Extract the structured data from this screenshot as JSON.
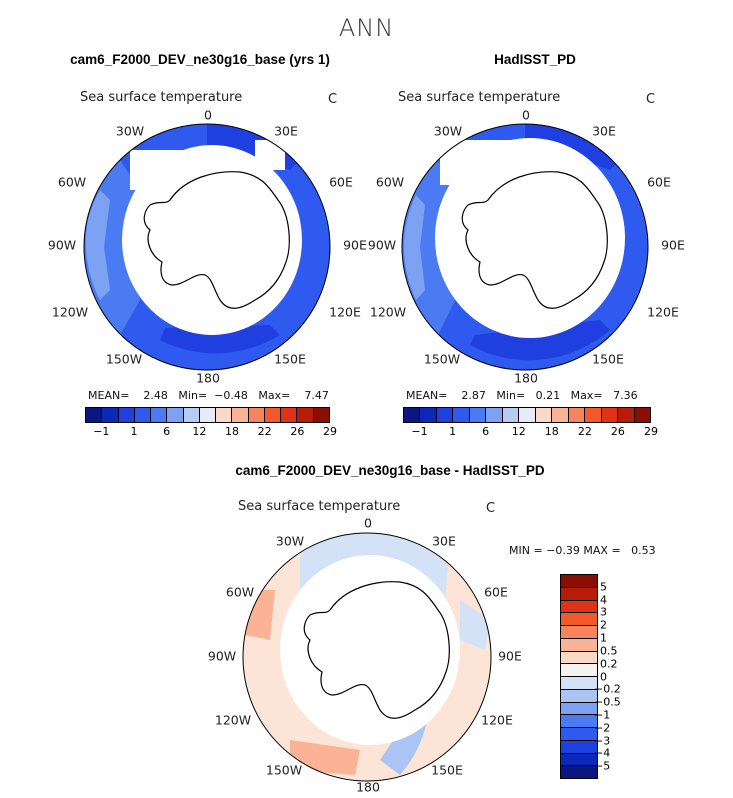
{
  "title": "ANN",
  "panels": [
    {
      "title": "cam6_F2000_DEV_ne30g16_base (yrs 1)",
      "var_label": "Sea surface temperature",
      "units": "C",
      "stats": {
        "mean_label": "MEAN=",
        "mean": "2.48",
        "min_label": "Min=",
        "min": "−0.48",
        "max_label": "Max=",
        "max": "7.47"
      }
    },
    {
      "title": "HadISST_PD",
      "var_label": "Sea surface temperature",
      "units": "C",
      "stats": {
        "mean_label": "MEAN=",
        "mean": "2.87",
        "min_label": "Min=",
        "min": "0.21",
        "max_label": "Max=",
        "max": "7.36"
      }
    },
    {
      "title": "cam6_F2000_DEV_ne30g16_base - HadISST_PD",
      "var_label": "Sea surface temperature",
      "units": "C",
      "stats": {
        "min_label": "MIN =",
        "min": "−0.39",
        "max_label": "MAX =",
        "max": "0.53"
      }
    }
  ],
  "lon_labels": [
    "0",
    "30E",
    "60E",
    "90E",
    "120E",
    "150E",
    "180",
    "150W",
    "120W",
    "90W",
    "60W",
    "30W"
  ],
  "colorbar_top": {
    "colors": [
      "#0a1780",
      "#0b28b8",
      "#1f3fe0",
      "#2f5af0",
      "#4a7bf2",
      "#7ea2f3",
      "#b5cdf5",
      "#e4ecf8",
      "#fcd9c6",
      "#fab394",
      "#f7845c",
      "#f25a2c",
      "#e03214",
      "#b81c08",
      "#8a0f02"
    ],
    "labels": [
      "−1",
      "1",
      "6",
      "12",
      "18",
      "22",
      "26",
      "29"
    ]
  },
  "colorbar_diff": {
    "colors": [
      "#8a0f02",
      "#b81c08",
      "#e03214",
      "#f25a2c",
      "#f7845c",
      "#fab394",
      "#fcd9c6",
      "#f5f3f0",
      "#d4e2f7",
      "#aac4f4",
      "#7ea2f3",
      "#4a7bf2",
      "#2f5af0",
      "#1f3fe0",
      "#0b28b8",
      "#0a1780"
    ],
    "labels": [
      "5",
      "4",
      "3",
      "2",
      "1",
      "0.5",
      "0.2",
      "0",
      "−0.2",
      "−0.5",
      "−1",
      "−2",
      "−3",
      "−4",
      "−5"
    ]
  }
}
